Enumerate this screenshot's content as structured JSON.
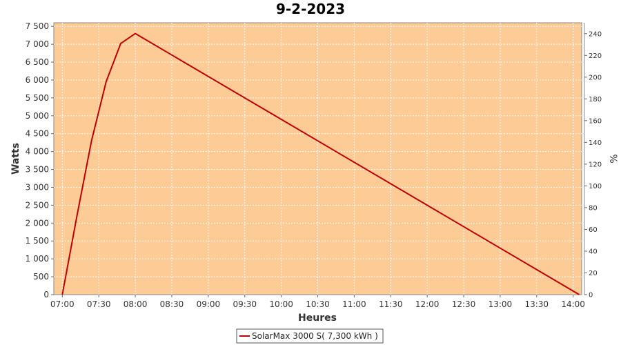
{
  "chart_data": {
    "type": "line",
    "title": "9-2-2023",
    "xlabel": "Heures",
    "ylabel": "Watts",
    "y2label": "%",
    "x_ticks": [
      "07:00",
      "07:30",
      "08:00",
      "08:30",
      "09:00",
      "09:30",
      "10:00",
      "10:30",
      "11:00",
      "11:30",
      "12:00",
      "12:30",
      "13:00",
      "13:30",
      "14:00"
    ],
    "y_ticks": [
      "0",
      "500",
      "1 000",
      "1 500",
      "2 000",
      "2 500",
      "3 000",
      "3 500",
      "4 000",
      "4 500",
      "5 000",
      "5 500",
      "6 000",
      "6 500",
      "7 000",
      "7 500"
    ],
    "y2_ticks": [
      "0",
      "20",
      "40",
      "60",
      "80",
      "100",
      "120",
      "140",
      "160",
      "180",
      "200",
      "220",
      "240"
    ],
    "xlim": [
      "06:53",
      "14:07"
    ],
    "ylim": [
      0,
      7600
    ],
    "y2lim": [
      0,
      250
    ],
    "grid": true,
    "legend_position": "bottom-center",
    "plot_background": "#fdcb96",
    "line_color": "#c00000",
    "series": [
      {
        "name": "SolarMax 3000 S( 7,300 kWh )",
        "points": [
          [
            "07:00",
            0
          ],
          [
            "07:12",
            2200
          ],
          [
            "07:24",
            4300
          ],
          [
            "07:36",
            5950
          ],
          [
            "07:48",
            7020
          ],
          [
            "08:00",
            7300
          ],
          [
            "14:05",
            0
          ]
        ]
      }
    ]
  }
}
